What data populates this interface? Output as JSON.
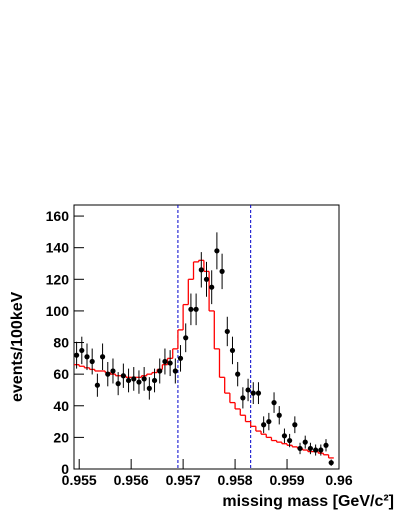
{
  "chart_data": {
    "type": "scatter",
    "xlabel": "missing mass [GeV/c²]",
    "ylabel": "events/100keV",
    "xlim": [
      0.9549,
      0.96
    ],
    "ylim": [
      0,
      167
    ],
    "xticks": [
      0.955,
      0.956,
      0.957,
      0.958,
      0.959,
      0.96
    ],
    "yticks": [
      0,
      20,
      40,
      60,
      80,
      100,
      120,
      140,
      160
    ],
    "bin_width": 0.0001,
    "x": [
      0.95495,
      0.95505,
      0.95515,
      0.95525,
      0.95535,
      0.95545,
      0.95555,
      0.95565,
      0.95575,
      0.95585,
      0.95595,
      0.95605,
      0.95615,
      0.95625,
      0.95635,
      0.95645,
      0.95655,
      0.95665,
      0.95675,
      0.95685,
      0.95695,
      0.95705,
      0.95715,
      0.95725,
      0.95735,
      0.95745,
      0.95755,
      0.95765,
      0.95775,
      0.95785,
      0.95795,
      0.95805,
      0.95815,
      0.95825,
      0.95835,
      0.95845,
      0.95855,
      0.95865,
      0.95875,
      0.95885,
      0.95895,
      0.95905,
      0.95915,
      0.95925,
      0.95935,
      0.95945,
      0.95955,
      0.95965,
      0.95975,
      0.95985
    ],
    "points": {
      "color": "#000000",
      "values": [
        72,
        75,
        71,
        68,
        53,
        71,
        60,
        62,
        54,
        59,
        56,
        57,
        55,
        57,
        51,
        56,
        62,
        68,
        67,
        62,
        70,
        83,
        101,
        101,
        126,
        120,
        115,
        138,
        125,
        87,
        75,
        60,
        45,
        50,
        48,
        48,
        28,
        30,
        42,
        34,
        21,
        18,
        28,
        13,
        17,
        13,
        12,
        12,
        15,
        4
      ],
      "errors": [
        8.5,
        8.7,
        8.4,
        8.2,
        7.3,
        8.4,
        7.7,
        7.9,
        7.3,
        7.7,
        7.5,
        7.5,
        7.4,
        7.5,
        7.1,
        7.5,
        7.9,
        8.2,
        8.2,
        7.9,
        8.4,
        9.1,
        10,
        10,
        11.2,
        11,
        10.7,
        11.7,
        11.2,
        9.3,
        8.7,
        7.7,
        6.7,
        7.1,
        6.9,
        6.9,
        5.3,
        5.5,
        6.5,
        5.8,
        4.6,
        4.2,
        5.3,
        3.6,
        4.1,
        3.6,
        3.5,
        3.5,
        3.9,
        2
      ]
    },
    "fit": {
      "color": "#ff0000",
      "values": [
        66,
        65,
        64,
        63,
        62,
        62,
        61,
        60,
        59,
        59,
        58,
        58,
        58,
        59,
        60,
        61,
        63,
        66,
        70,
        76,
        88,
        104,
        120,
        131,
        132,
        125,
        100,
        76,
        58,
        48,
        42,
        38,
        34,
        30,
        27,
        24,
        22,
        20,
        18,
        17,
        16,
        15,
        14,
        13,
        12,
        11,
        11,
        10,
        9,
        7
      ]
    },
    "vlines": [
      0.9569,
      0.9583
    ],
    "vline_color": "#0000cc"
  }
}
